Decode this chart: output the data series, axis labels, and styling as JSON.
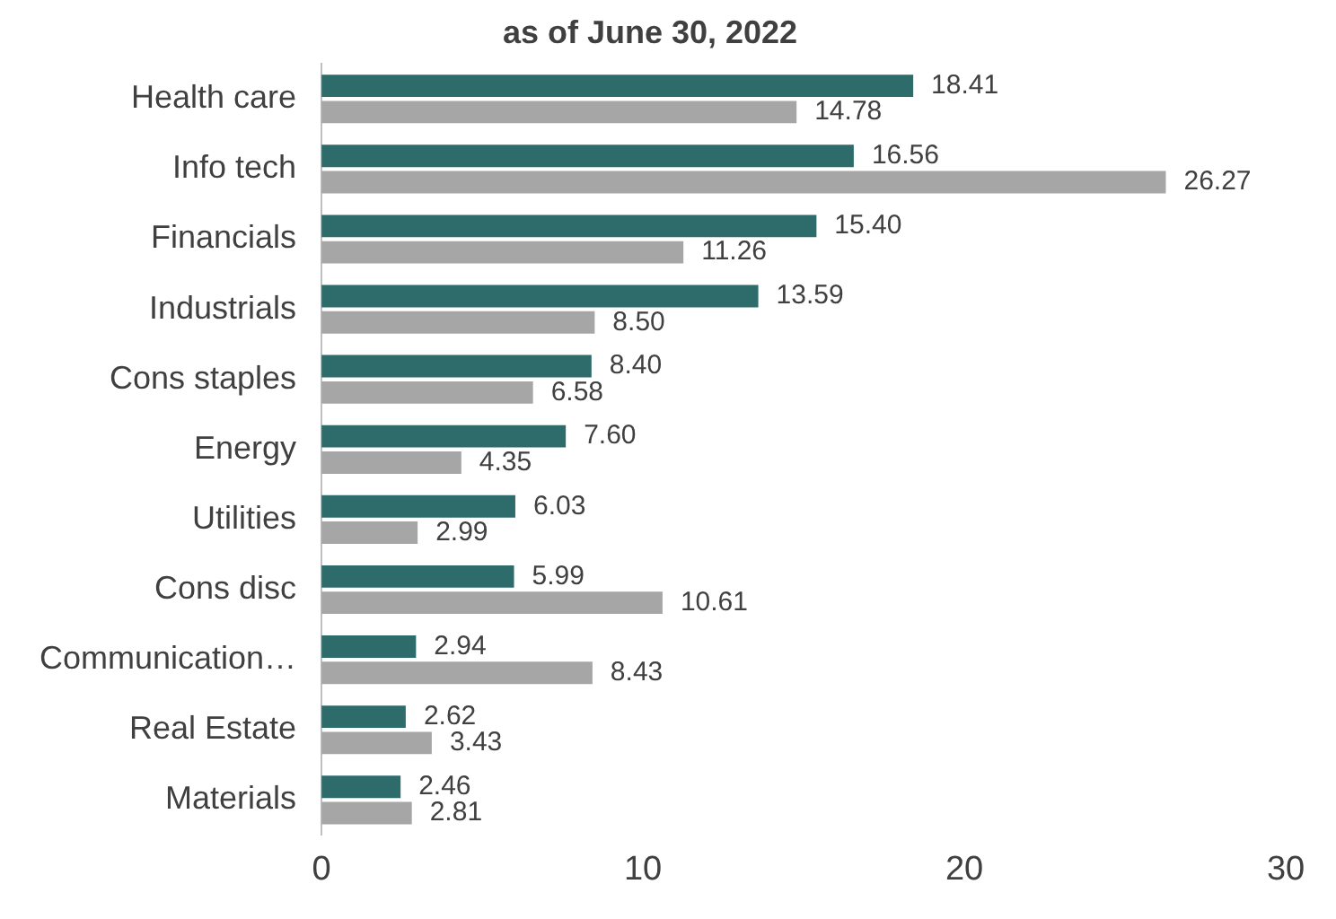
{
  "chart_data": {
    "type": "bar",
    "orientation": "horizontal",
    "title": "as of June 30, 2022",
    "categories": [
      "Health care",
      "Info tech",
      "Financials",
      "Industrials",
      "Cons staples",
      "Energy",
      "Utilities",
      "Cons disc",
      "Communication…",
      "Real Estate",
      "Materials"
    ],
    "series": [
      {
        "color": "#2e6b6b",
        "values": [
          18.41,
          16.56,
          15.4,
          13.59,
          8.4,
          7.6,
          6.03,
          5.99,
          2.94,
          2.62,
          2.46
        ],
        "value_labels": [
          "18.41",
          "16.56",
          "15.40",
          "13.59",
          "8.40",
          "7.60",
          "6.03",
          "5.99",
          "2.94",
          "2.62",
          "2.46"
        ]
      },
      {
        "color": "#a6a6a6",
        "values": [
          14.78,
          26.27,
          11.26,
          8.5,
          6.58,
          4.35,
          2.99,
          10.61,
          8.43,
          3.43,
          2.81
        ],
        "value_labels": [
          "14.78",
          "26.27",
          "11.26",
          "8.50",
          "6.58",
          "4.35",
          "2.99",
          "10.61",
          "8.43",
          "3.43",
          "2.81"
        ]
      }
    ],
    "xlim": [
      0,
      30
    ],
    "xticks": [
      0,
      10,
      20,
      30
    ],
    "grid": false,
    "legend": false
  }
}
